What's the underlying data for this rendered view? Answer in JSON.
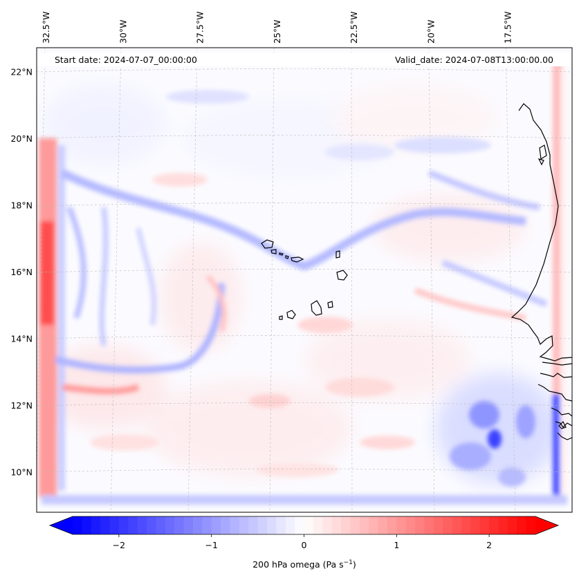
{
  "map": {
    "start_label": "Start date: 2024-07-07_00:00:00",
    "valid_label": "Valid_date: 2024-07-08T13:00:00.00",
    "lon_ticks": [
      {
        "value": -32.5,
        "label": "32.5°W"
      },
      {
        "value": -30.0,
        "label": "30°W"
      },
      {
        "value": -27.5,
        "label": "27.5°W"
      },
      {
        "value": -25.0,
        "label": "25°W"
      },
      {
        "value": -22.5,
        "label": "22.5°W"
      },
      {
        "value": -20.0,
        "label": "20°W"
      },
      {
        "value": -17.5,
        "label": "17.5°W"
      }
    ],
    "lat_ticks": [
      {
        "value": 22,
        "label": "22°N"
      },
      {
        "value": 20,
        "label": "20°N"
      },
      {
        "value": 18,
        "label": "18°N"
      },
      {
        "value": 16,
        "label": "16°N"
      },
      {
        "value": 14,
        "label": "14°N"
      },
      {
        "value": 12,
        "label": "12°N"
      },
      {
        "value": 10,
        "label": "10°N"
      }
    ],
    "colorbar": {
      "ticks": [
        {
          "value": -2,
          "label": "−2"
        },
        {
          "value": -1,
          "label": "−1"
        },
        {
          "value": 0,
          "label": "0"
        },
        {
          "value": 1,
          "label": "1"
        },
        {
          "value": 2,
          "label": "2"
        }
      ],
      "range": [
        -2.5,
        2.5
      ],
      "extend": "both",
      "colormap": "bwr",
      "label_main": "200 hPa omega (Pa s",
      "label_sup": "−1",
      "label_close": ")"
    },
    "colors": {
      "negative": "#0000ff",
      "neutral": "#ffffff",
      "positive": "#ff0000",
      "coastline": "#000000",
      "gridline": "#bbbbbb"
    }
  }
}
